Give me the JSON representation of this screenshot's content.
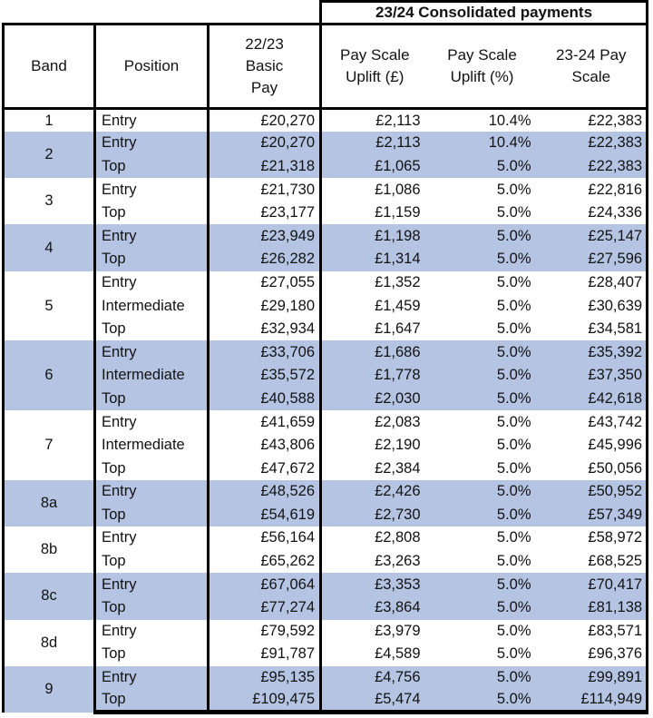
{
  "banner": {
    "consolidated_header": "23/24 Consolidated payments"
  },
  "columns": {
    "band": "Band",
    "position": "Position",
    "basic_pay": "22/23 Basic Pay",
    "uplift_gbp": "Pay Scale Uplift (£)",
    "uplift_pct": "Pay Scale Uplift (%)",
    "pay_scale_23_24": "23-24 Pay Scale"
  },
  "colors": {
    "band_highlight_blue": "#b5c4e3",
    "border_black": "#000000",
    "background_white": "#ffffff"
  },
  "table": {
    "groups": [
      {
        "band": "1",
        "highlighted": false,
        "rows": [
          {
            "position": "Entry",
            "basic": "£20,270",
            "uplift": "£2,113",
            "pct": "10.4%",
            "scale": "£22,383"
          }
        ]
      },
      {
        "band": "2",
        "highlighted": true,
        "rows": [
          {
            "position": "Entry",
            "basic": "£20,270",
            "uplift": "£2,113",
            "pct": "10.4%",
            "scale": "£22,383"
          },
          {
            "position": "Top",
            "basic": "£21,318",
            "uplift": "£1,065",
            "pct": "5.0%",
            "scale": "£22,383"
          }
        ]
      },
      {
        "band": "3",
        "highlighted": false,
        "rows": [
          {
            "position": "Entry",
            "basic": "£21,730",
            "uplift": "£1,086",
            "pct": "5.0%",
            "scale": "£22,816"
          },
          {
            "position": "Top",
            "basic": "£23,177",
            "uplift": "£1,159",
            "pct": "5.0%",
            "scale": "£24,336"
          }
        ]
      },
      {
        "band": "4",
        "highlighted": true,
        "rows": [
          {
            "position": "Entry",
            "basic": "£23,949",
            "uplift": "£1,198",
            "pct": "5.0%",
            "scale": "£25,147"
          },
          {
            "position": "Top",
            "basic": "£26,282",
            "uplift": "£1,314",
            "pct": "5.0%",
            "scale": "£27,596"
          }
        ]
      },
      {
        "band": "5",
        "highlighted": false,
        "rows": [
          {
            "position": "Entry",
            "basic": "£27,055",
            "uplift": "£1,352",
            "pct": "5.0%",
            "scale": "£28,407"
          },
          {
            "position": "Intermediate",
            "basic": "£29,180",
            "uplift": "£1,459",
            "pct": "5.0%",
            "scale": "£30,639"
          },
          {
            "position": "Top",
            "basic": "£32,934",
            "uplift": "£1,647",
            "pct": "5.0%",
            "scale": "£34,581"
          }
        ]
      },
      {
        "band": "6",
        "highlighted": true,
        "rows": [
          {
            "position": "Entry",
            "basic": "£33,706",
            "uplift": "£1,686",
            "pct": "5.0%",
            "scale": "£35,392"
          },
          {
            "position": "Intermediate",
            "basic": "£35,572",
            "uplift": "£1,778",
            "pct": "5.0%",
            "scale": "£37,350"
          },
          {
            "position": "Top",
            "basic": "£40,588",
            "uplift": "£2,030",
            "pct": "5.0%",
            "scale": "£42,618"
          }
        ]
      },
      {
        "band": "7",
        "highlighted": false,
        "rows": [
          {
            "position": "Entry",
            "basic": "£41,659",
            "uplift": "£2,083",
            "pct": "5.0%",
            "scale": "£43,742"
          },
          {
            "position": "Intermediate",
            "basic": "£43,806",
            "uplift": "£2,190",
            "pct": "5.0%",
            "scale": "£45,996"
          },
          {
            "position": "Top",
            "basic": "£47,672",
            "uplift": "£2,384",
            "pct": "5.0%",
            "scale": "£50,056"
          }
        ]
      },
      {
        "band": "8a",
        "highlighted": true,
        "rows": [
          {
            "position": "Entry",
            "basic": "£48,526",
            "uplift": "£2,426",
            "pct": "5.0%",
            "scale": "£50,952"
          },
          {
            "position": "Top",
            "basic": "£54,619",
            "uplift": "£2,730",
            "pct": "5.0%",
            "scale": "£57,349"
          }
        ]
      },
      {
        "band": "8b",
        "highlighted": false,
        "rows": [
          {
            "position": "Entry",
            "basic": "£56,164",
            "uplift": "£2,808",
            "pct": "5.0%",
            "scale": "£58,972"
          },
          {
            "position": "Top",
            "basic": "£65,262",
            "uplift": "£3,263",
            "pct": "5.0%",
            "scale": "£68,525"
          }
        ]
      },
      {
        "band": "8c",
        "highlighted": true,
        "rows": [
          {
            "position": "Entry",
            "basic": "£67,064",
            "uplift": "£3,353",
            "pct": "5.0%",
            "scale": "£70,417"
          },
          {
            "position": "Top",
            "basic": "£77,274",
            "uplift": "£3,864",
            "pct": "5.0%",
            "scale": "£81,138"
          }
        ]
      },
      {
        "band": "8d",
        "highlighted": false,
        "rows": [
          {
            "position": "Entry",
            "basic": "£79,592",
            "uplift": "£3,979",
            "pct": "5.0%",
            "scale": "£83,571"
          },
          {
            "position": "Top",
            "basic": "£91,787",
            "uplift": "£4,589",
            "pct": "5.0%",
            "scale": "£96,376"
          }
        ]
      },
      {
        "band": "9",
        "highlighted": true,
        "rows": [
          {
            "position": "Entry",
            "basic": "£95,135",
            "uplift": "£4,756",
            "pct": "5.0%",
            "scale": "£99,891"
          },
          {
            "position": "Top",
            "basic": "£109,475",
            "uplift": "£5,474",
            "pct": "5.0%",
            "scale": "£114,949"
          }
        ]
      }
    ]
  }
}
